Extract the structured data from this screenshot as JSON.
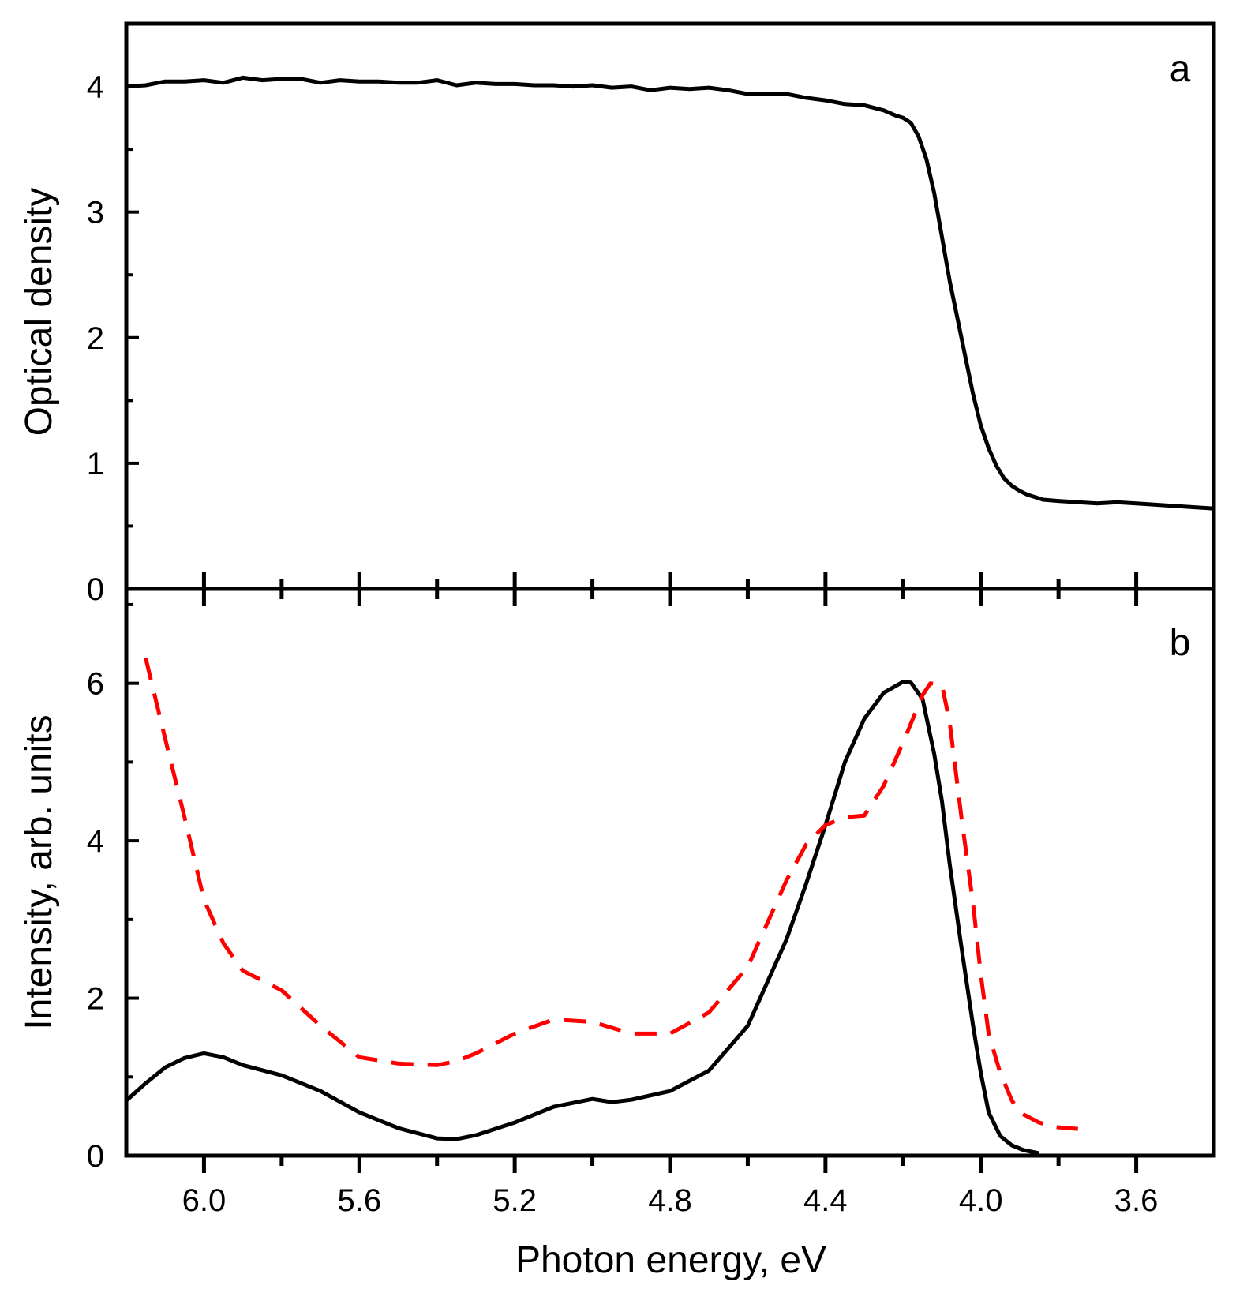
{
  "chart_data": [
    {
      "panel": "a",
      "type": "line",
      "ylabel": "Optical density",
      "xlabel": "",
      "xlim": [
        6.2,
        3.4
      ],
      "ylim": [
        0,
        4.5
      ],
      "x_reversed": true,
      "yticks": [
        0,
        1,
        2,
        3,
        4
      ],
      "series": [
        {
          "name": "optical density",
          "color": "#000000",
          "dash": "solid",
          "x": [
            6.2,
            6.15,
            6.1,
            6.05,
            6.0,
            5.95,
            5.9,
            5.85,
            5.8,
            5.75,
            5.7,
            5.65,
            5.6,
            5.55,
            5.5,
            5.45,
            5.4,
            5.35,
            5.3,
            5.25,
            5.2,
            5.15,
            5.1,
            5.05,
            5.0,
            4.95,
            4.9,
            4.85,
            4.8,
            4.75,
            4.7,
            4.65,
            4.6,
            4.55,
            4.5,
            4.45,
            4.4,
            4.35,
            4.3,
            4.25,
            4.22,
            4.2,
            4.18,
            4.16,
            4.14,
            4.12,
            4.1,
            4.08,
            4.06,
            4.04,
            4.02,
            4.0,
            3.98,
            3.96,
            3.94,
            3.92,
            3.9,
            3.88,
            3.86,
            3.84,
            3.8,
            3.75,
            3.7,
            3.65,
            3.6,
            3.55,
            3.5,
            3.45,
            3.4
          ],
          "y": [
            4.0,
            4.01,
            4.04,
            4.04,
            4.05,
            4.03,
            4.07,
            4.05,
            4.06,
            4.06,
            4.03,
            4.05,
            4.04,
            4.04,
            4.03,
            4.03,
            4.05,
            4.01,
            4.03,
            4.02,
            4.02,
            4.01,
            4.01,
            4.0,
            4.01,
            3.99,
            4.0,
            3.97,
            3.99,
            3.98,
            3.99,
            3.97,
            3.94,
            3.94,
            3.94,
            3.91,
            3.89,
            3.86,
            3.85,
            3.81,
            3.77,
            3.75,
            3.71,
            3.6,
            3.42,
            3.15,
            2.8,
            2.45,
            2.15,
            1.85,
            1.55,
            1.3,
            1.12,
            0.98,
            0.88,
            0.82,
            0.78,
            0.75,
            0.73,
            0.71,
            0.7,
            0.69,
            0.68,
            0.69,
            0.68,
            0.67,
            0.66,
            0.65,
            0.64
          ]
        }
      ],
      "annotation": "a"
    },
    {
      "panel": "b",
      "type": "line",
      "ylabel": "Intensity, arb. units",
      "xlabel": "Photon energy, eV",
      "xlim": [
        6.2,
        3.4
      ],
      "ylim": [
        0,
        7.2
      ],
      "x_reversed": true,
      "yticks": [
        0,
        2,
        4,
        6
      ],
      "xticks": [
        6.0,
        5.6,
        5.2,
        4.8,
        4.4,
        4.0,
        3.6
      ],
      "xtick_labels": [
        "6.0",
        "5.6",
        "5.2",
        "4.8",
        "4.4",
        "4.0",
        "3.6"
      ],
      "series": [
        {
          "name": "solid",
          "color": "#000000",
          "dash": "solid",
          "x": [
            6.2,
            6.15,
            6.1,
            6.05,
            6.0,
            5.95,
            5.9,
            5.8,
            5.7,
            5.6,
            5.5,
            5.4,
            5.35,
            5.3,
            5.2,
            5.1,
            5.0,
            4.95,
            4.9,
            4.8,
            4.7,
            4.6,
            4.5,
            4.45,
            4.4,
            4.35,
            4.3,
            4.25,
            4.2,
            4.18,
            4.15,
            4.12,
            4.1,
            4.08,
            4.05,
            4.02,
            4.0,
            3.98,
            3.95,
            3.92,
            3.89,
            3.85
          ],
          "y": [
            0.7,
            0.92,
            1.12,
            1.24,
            1.3,
            1.25,
            1.15,
            1.02,
            0.82,
            0.55,
            0.35,
            0.22,
            0.21,
            0.26,
            0.42,
            0.62,
            0.72,
            0.68,
            0.71,
            0.82,
            1.08,
            1.65,
            2.75,
            3.45,
            4.2,
            5.0,
            5.55,
            5.88,
            6.02,
            6.01,
            5.8,
            5.1,
            4.5,
            3.7,
            2.65,
            1.65,
            1.05,
            0.55,
            0.25,
            0.13,
            0.07,
            0.03
          ]
        },
        {
          "name": "dashed",
          "color": "#ff0000",
          "dash": "dashed",
          "x": [
            6.15,
            6.1,
            6.05,
            6.0,
            5.95,
            5.9,
            5.8,
            5.7,
            5.6,
            5.5,
            5.4,
            5.35,
            5.3,
            5.2,
            5.1,
            5.0,
            4.9,
            4.8,
            4.7,
            4.6,
            4.55,
            4.5,
            4.45,
            4.4,
            4.35,
            4.3,
            4.25,
            4.2,
            4.15,
            4.13,
            4.1,
            4.08,
            4.05,
            4.02,
            4.0,
            3.98,
            3.95,
            3.92,
            3.9,
            3.85,
            3.8,
            3.75
          ],
          "y": [
            6.32,
            5.3,
            4.3,
            3.25,
            2.7,
            2.35,
            2.1,
            1.65,
            1.25,
            1.17,
            1.15,
            1.2,
            1.3,
            1.55,
            1.73,
            1.7,
            1.55,
            1.55,
            1.82,
            2.4,
            2.95,
            3.5,
            3.95,
            4.2,
            4.3,
            4.32,
            4.7,
            5.25,
            5.85,
            6.0,
            5.98,
            5.5,
            4.3,
            3.2,
            2.3,
            1.55,
            1.05,
            0.7,
            0.55,
            0.42,
            0.36,
            0.34
          ]
        }
      ],
      "annotation": "b"
    }
  ]
}
